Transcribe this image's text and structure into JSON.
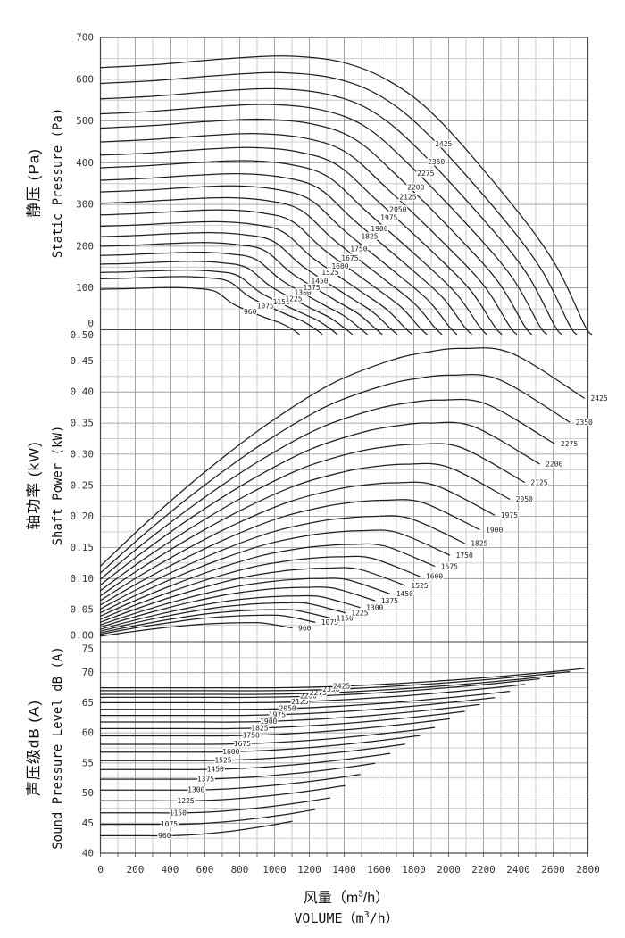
{
  "figure": {
    "background": "#ffffff",
    "curve_color": "#1f1f1f",
    "grid_minor": "#bfbfbf",
    "grid_major": "#8f8f8f",
    "border_color": "#444444",
    "text_color": "#333333",
    "rpm_label_color": "#222222"
  },
  "chart_data": {
    "type": "line",
    "description": "Fan performance curves for impeller speeds 960-2425 rpm",
    "x": {
      "min": 0,
      "max": 2800,
      "grid_step": 100,
      "tick_step": 200,
      "ticks": [
        "0",
        "200",
        "400",
        "600",
        "800",
        "1000",
        "1200",
        "1400",
        "1600",
        "1800",
        "2000",
        "2200",
        "2400",
        "2600",
        "2800"
      ],
      "label_zh": {
        "pre": "风量（m",
        "sup": "3",
        "post": "/h）"
      },
      "label_en": {
        "pre": "VOLUME（m",
        "sup": "3",
        "post": "/h）"
      }
    },
    "panels": [
      {
        "id": "pressure",
        "title_zh": "静压 (Pa)",
        "title_en": "Static Pressure (Pa)",
        "ymin": 0,
        "ymax": 700,
        "grid_step": 50,
        "tick_step": 100,
        "ticks": [
          {
            "v": 700,
            "t": "700"
          },
          {
            "v": 600,
            "t": "600"
          },
          {
            "v": 500,
            "t": "500"
          },
          {
            "v": 400,
            "t": "400"
          },
          {
            "v": 300,
            "t": "300"
          },
          {
            "v": 200,
            "t": "200"
          },
          {
            "v": 100,
            "t": "100"
          },
          {
            "v": 0,
            "t": "0",
            "dy": -7
          }
        ]
      },
      {
        "id": "power",
        "title_zh": "轴功率 (kW)",
        "title_en": "Shaft Power (kW)",
        "ymin": 0,
        "ymax": 0.5,
        "grid_step": 0.025,
        "tick_step": 0.05,
        "ticks": [
          {
            "v": 0.5,
            "t": "0.50",
            "dy": 6
          },
          {
            "v": 0.45,
            "t": "0.45"
          },
          {
            "v": 0.4,
            "t": "0.40"
          },
          {
            "v": 0.35,
            "t": "0.35"
          },
          {
            "v": 0.3,
            "t": "0.30"
          },
          {
            "v": 0.25,
            "t": "0.25"
          },
          {
            "v": 0.2,
            "t": "0.20"
          },
          {
            "v": 0.15,
            "t": "0.15"
          },
          {
            "v": 0.1,
            "t": "0.10"
          },
          {
            "v": 0.05,
            "t": "0.05"
          },
          {
            "v": 0.0,
            "t": "0.00",
            "dy": -6
          }
        ]
      },
      {
        "id": "noise",
        "title_zh": "声压级dB (A)",
        "title_en": "Sound Pressure Level dB (A)",
        "ymin": 40,
        "ymax": 75,
        "grid_step": 2.5,
        "tick_step": 5,
        "ticks": [
          {
            "v": 75,
            "t": "75",
            "dy": 7
          },
          {
            "v": 70,
            "t": "70"
          },
          {
            "v": 65,
            "t": "65"
          },
          {
            "v": 60,
            "t": "60"
          },
          {
            "v": 55,
            "t": "55"
          },
          {
            "v": 50,
            "t": "50"
          },
          {
            "v": 45,
            "t": "45"
          },
          {
            "v": 40,
            "t": "40"
          }
        ]
      }
    ],
    "series_note": "p0=static pressure (Pa) at zero flow; vmax=max volume (m3/h); fa,fb=pressure drop factors at 70%/85% of vmax; pw0/pwPk=shaft power (kW) at zero flow/at peak; pwEndF=end power as fraction of peak; db0=sound level dB(A) at zero flow; dbRise=dB increase at vmax; lblP=[volume,pressure] position of rpm label in pressure panel; lblNv=volume position of rpm label in noise panel",
    "series": [
      {
        "rpm": "960",
        "p0": 97,
        "vmax": 1100,
        "fa": 0.62,
        "fb": 0.32,
        "pw0": 0.0074,
        "pwPk": 0.029,
        "pwEndF": 0.72,
        "db0": 42.9,
        "dbRise": 2.4,
        "lblP": [
          860,
          44
        ],
        "lblNv": 368
      },
      {
        "rpm": "1075",
        "p0": 122,
        "vmax": 1232,
        "fa": 0.634,
        "fb": 0.333,
        "pw0": 0.0105,
        "pwPk": 0.041,
        "pwEndF": 0.729,
        "db0": 44.8,
        "dbRise": 2.46,
        "lblP": [
          947,
          58
        ],
        "lblNv": 395
      },
      {
        "rpm": "1150",
        "p0": 137,
        "vmax": 1318,
        "fa": 0.643,
        "fb": 0.341,
        "pw0": 0.0128,
        "pwPk": 0.05,
        "pwEndF": 0.734,
        "db0": 46.7,
        "dbRise": 2.5,
        "lblP": [
          1039,
          67
        ],
        "lblNv": 445
      },
      {
        "rpm": "1225",
        "p0": 157,
        "vmax": 1404,
        "fa": 0.653,
        "fb": 0.349,
        "pw0": 0.0155,
        "pwPk": 0.061,
        "pwEndF": 0.74,
        "db0": 48.7,
        "dbRise": 2.54,
        "lblP": [
          1110,
          75
        ],
        "lblNv": 490
      },
      {
        "rpm": "1300",
        "p0": 178,
        "vmax": 1490,
        "fa": 0.662,
        "fb": 0.357,
        "pw0": 0.0185,
        "pwPk": 0.072,
        "pwEndF": 0.746,
        "db0": 50.5,
        "dbRise": 2.59,
        "lblP": [
          1162,
          90
        ],
        "lblNv": 550
      },
      {
        "rpm": "1375",
        "p0": 200,
        "vmax": 1576,
        "fa": 0.671,
        "fb": 0.365,
        "pw0": 0.0219,
        "pwPk": 0.086,
        "pwEndF": 0.751,
        "db0": 52.3,
        "dbRise": 2.63,
        "lblP": [
          1213,
          101
        ],
        "lblNv": 605
      },
      {
        "rpm": "1450",
        "p0": 223,
        "vmax": 1662,
        "fa": 0.68,
        "fb": 0.374,
        "pw0": 0.0256,
        "pwPk": 0.1,
        "pwEndF": 0.757,
        "db0": 53.9,
        "dbRise": 2.67,
        "lblP": [
          1259,
          118
        ],
        "lblNv": 660
      },
      {
        "rpm": "1525",
        "p0": 248,
        "vmax": 1748,
        "fa": 0.689,
        "fb": 0.382,
        "pw0": 0.0299,
        "pwPk": 0.117,
        "pwEndF": 0.762,
        "db0": 55.4,
        "dbRise": 2.71,
        "lblP": [
          1320,
          138
        ],
        "lblNv": 705
      },
      {
        "rpm": "1600",
        "p0": 275,
        "vmax": 1833,
        "fa": 0.699,
        "fb": 0.39,
        "pw0": 0.0345,
        "pwPk": 0.135,
        "pwEndF": 0.768,
        "db0": 56.8,
        "dbRise": 2.75,
        "lblP": [
          1377,
          153
        ],
        "lblNv": 750
      },
      {
        "rpm": "1675",
        "p0": 303,
        "vmax": 1919,
        "fa": 0.708,
        "fb": 0.398,
        "pw0": 0.0396,
        "pwPk": 0.155,
        "pwEndF": 0.774,
        "db0": 58.1,
        "dbRise": 2.79,
        "lblP": [
          1433,
          172
        ],
        "lblNv": 815
      },
      {
        "rpm": "1750",
        "p0": 330,
        "vmax": 2005,
        "fa": 0.717,
        "fb": 0.406,
        "pw0": 0.0451,
        "pwPk": 0.177,
        "pwEndF": 0.779,
        "db0": 59.5,
        "dbRise": 2.83,
        "lblP": [
          1484,
          194
        ],
        "lblNv": 865
      },
      {
        "rpm": "1825",
        "p0": 358,
        "vmax": 2091,
        "fa": 0.726,
        "fb": 0.414,
        "pw0": 0.0512,
        "pwPk": 0.2,
        "pwEndF": 0.785,
        "db0": 60.7,
        "dbRise": 2.87,
        "lblP": [
          1546,
          224
        ],
        "lblNv": 915
      },
      {
        "rpm": "1900",
        "p0": 388,
        "vmax": 2177,
        "fa": 0.735,
        "fb": 0.423,
        "pw0": 0.0577,
        "pwPk": 0.226,
        "pwEndF": 0.791,
        "db0": 61.8,
        "dbRise": 2.91,
        "lblP": [
          1602,
          243
        ],
        "lblNv": 965
      },
      {
        "rpm": "1975",
        "p0": 418,
        "vmax": 2263,
        "fa": 0.745,
        "fb": 0.431,
        "pw0": 0.0648,
        "pwPk": 0.254,
        "pwEndF": 0.796,
        "db0": 62.9,
        "dbRise": 2.95,
        "lblP": [
          1658,
          269
        ],
        "lblNv": 1015
      },
      {
        "rpm": "2050",
        "p0": 450,
        "vmax": 2349,
        "fa": 0.754,
        "fb": 0.439,
        "pw0": 0.0725,
        "pwPk": 0.284,
        "pwEndF": 0.802,
        "db0": 63.9,
        "dbRise": 3.0,
        "lblP": [
          1709,
          289
        ],
        "lblNv": 1075
      },
      {
        "rpm": "2125",
        "p0": 483,
        "vmax": 2435,
        "fa": 0.763,
        "fb": 0.447,
        "pw0": 0.0807,
        "pwPk": 0.316,
        "pwEndF": 0.807,
        "db0": 65.0,
        "dbRise": 3.04,
        "lblP": [
          1766,
          319
        ],
        "lblNv": 1145
      },
      {
        "rpm": "2200",
        "p0": 517,
        "vmax": 2521,
        "fa": 0.772,
        "fb": 0.455,
        "pw0": 0.0896,
        "pwPk": 0.35,
        "pwEndF": 0.813,
        "db0": 65.9,
        "dbRise": 3.08,
        "lblP": [
          1812,
          342
        ],
        "lblNv": 1195
      },
      {
        "rpm": "2275",
        "p0": 553,
        "vmax": 2607,
        "fa": 0.782,
        "fb": 0.464,
        "pw0": 0.099,
        "pwPk": 0.387,
        "pwEndF": 0.819,
        "db0": 66.4,
        "dbRise": 3.12,
        "lblP": [
          1868,
          375
        ],
        "lblNv": 1250
      },
      {
        "rpm": "2350",
        "p0": 590,
        "vmax": 2693,
        "fa": 0.791,
        "fb": 0.472,
        "pw0": 0.109,
        "pwPk": 0.427,
        "pwEndF": 0.824,
        "db0": 67.0,
        "dbRise": 3.16,
        "lblP": [
          1929,
          403
        ],
        "lblNv": 1325
      },
      {
        "rpm": "2425",
        "p0": 628,
        "vmax": 2779,
        "fa": 0.8,
        "fb": 0.48,
        "pw0": 0.12,
        "pwPk": 0.47,
        "pwEndF": 0.83,
        "db0": 67.5,
        "dbRise": 3.2,
        "lblP": [
          1970,
          446
        ],
        "lblNv": 1385
      }
    ]
  }
}
